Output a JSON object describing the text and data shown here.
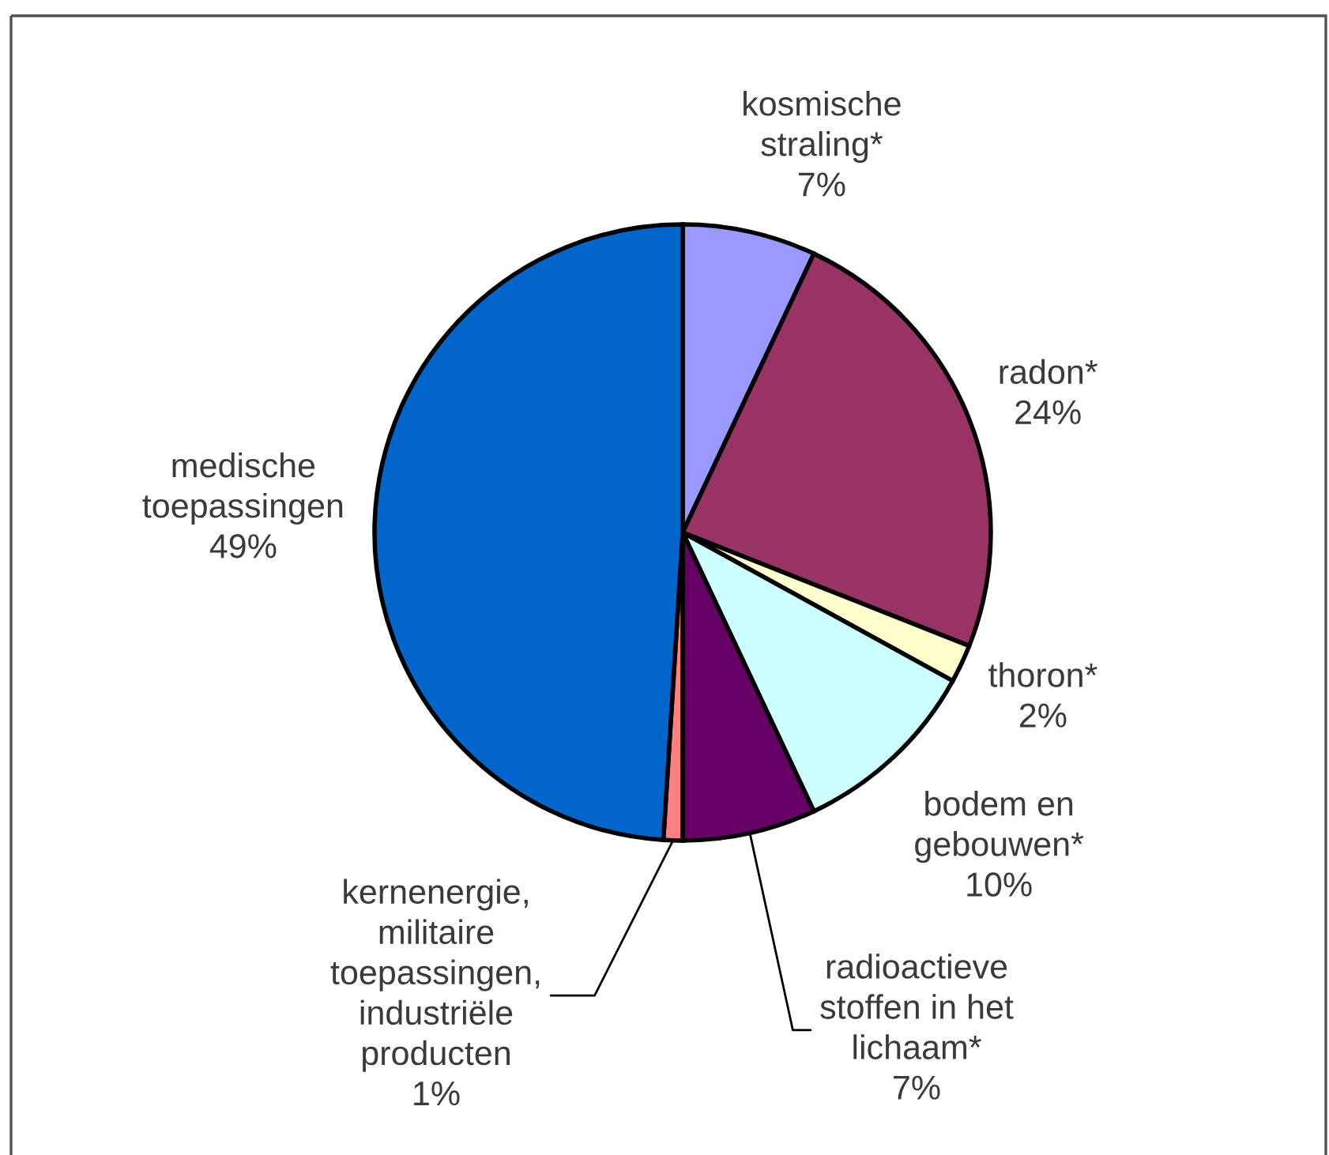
{
  "chart_data": {
    "type": "pie",
    "categories": [
      "kosmische\nstraling*",
      "radon*",
      "thoron*",
      "bodem en\ngebouwen*",
      "radioactieve\nstoffen in het\nlichaam*",
      "kernenergie,\nmilitaire\ntoepassingen,\nindustriële\nproducten",
      "medische\ntoepassingen"
    ],
    "values": [
      7,
      24,
      2,
      10,
      7,
      1,
      49
    ],
    "colors": [
      "#9999ff",
      "#993366",
      "#ffffcc",
      "#ccffff",
      "#660066",
      "#ff8080",
      "#0066cc"
    ],
    "value_labels": [
      "7%",
      "24%",
      "2%",
      "10%",
      "7%",
      "1%",
      "49%"
    ]
  }
}
